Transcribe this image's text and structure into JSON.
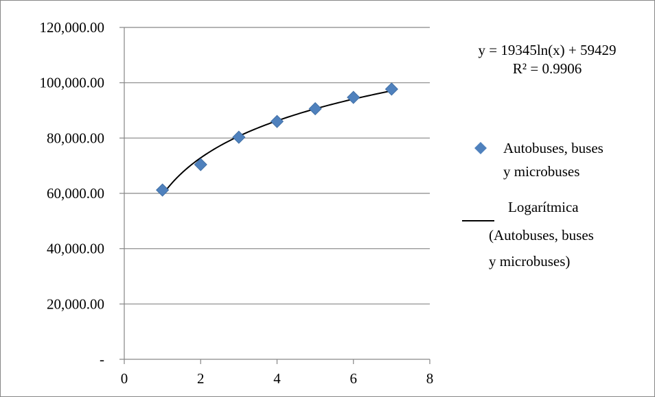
{
  "chart_data": {
    "type": "scatter",
    "title": "",
    "xlabel": "",
    "ylabel": "",
    "xlim": [
      0,
      8
    ],
    "ylim": [
      0,
      120000
    ],
    "x_ticks": [
      0,
      2,
      4,
      6,
      8
    ],
    "x_tick_labels": [
      "0",
      "2",
      "4",
      "6",
      "8"
    ],
    "y_ticks": [
      0,
      20000,
      40000,
      60000,
      80000,
      100000,
      120000
    ],
    "y_tick_labels": [
      "-",
      "20,000.00",
      "40,000.00",
      "60,000.00",
      "80,000.00",
      "100,000.00",
      "120,000.00"
    ],
    "grid": "horizontal",
    "legend_position": "right",
    "series": [
      {
        "name": "Autobuses, buses y microbuses",
        "legend_lines": [
          "Autobuses, buses",
          "y microbuses"
        ],
        "marker": "diamond",
        "color": "#4F81BD",
        "x": [
          1,
          2,
          3,
          4,
          5,
          6,
          7
        ],
        "y": [
          61200,
          70400,
          80300,
          86000,
          90600,
          94700,
          97700
        ]
      }
    ],
    "trendline": {
      "name": "Logarítmica (Autobuses, buses y microbuses)",
      "legend_lines": [
        "Logarítmica",
        "(Autobuses, buses",
        "y microbuses)"
      ],
      "type": "logarithmic",
      "a": 19345,
      "b": 59429,
      "color": "#000000",
      "equation": "y = 19345ln(x) + 59429",
      "r_squared": "R² = 0.9906"
    }
  }
}
